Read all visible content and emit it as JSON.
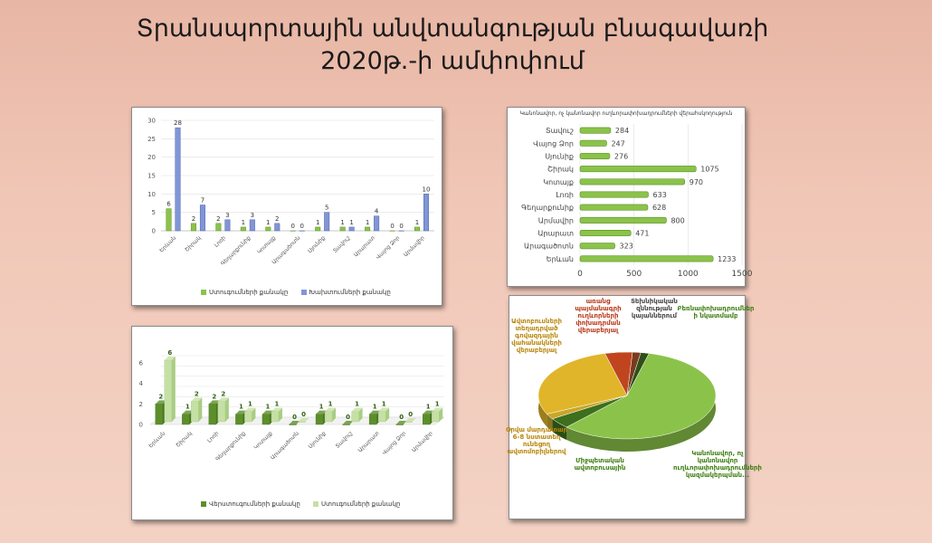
{
  "title": {
    "line1": "Տրանսպորտային անվտանգության բնագավառի",
    "line2": "2020թ.-ի ամփոփում"
  },
  "colors": {
    "green": "#8bc34a",
    "green_dark": "#5c8f2b",
    "blue": "#8096d6",
    "blue_dark": "#4d63ad",
    "light_green": "#c5e0a5",
    "orange": "#e0b52a",
    "red": "#c0451f"
  },
  "chart_data": [
    {
      "type": "bar",
      "categories": [
        "Երևան",
        "Շիրակ",
        "Լոռի",
        "Գեղարքունիք",
        "Կոտայք",
        "Արագածոտն",
        "Սյունիք",
        "Տավուշ",
        "Արարատ",
        "Վայոց Ձոր",
        "Արմավիր"
      ],
      "series": [
        {
          "name": "Ստուգումների քանակը",
          "values": [
            6,
            2,
            2,
            1,
            1,
            0,
            1,
            1,
            1,
            0,
            1
          ]
        },
        {
          "name": "Խախտումների քանակը",
          "values": [
            28,
            7,
            3,
            3,
            2,
            0,
            5,
            1,
            4,
            0,
            10
          ]
        }
      ],
      "ylim": [
        0,
        30
      ],
      "yticks": [
        0,
        5,
        10,
        15,
        20,
        25,
        30
      ],
      "grid": true,
      "legend": "bottom"
    },
    {
      "type": "bar",
      "orientation": "horizontal",
      "title": "Կանոնավոր, ոչ կանոնավոր ուղևորափոխադրումների վերահսկողություն",
      "categories": [
        "Տավուշ",
        "Վայոց Ձոր",
        "Սյունիք",
        "Շիրակ",
        "Կոտայք",
        "Լոռի",
        "Գեղարքունիք",
        "Արմավիր",
        "Արարատ",
        "Արագածոտն",
        "Երևան"
      ],
      "values": [
        284,
        247,
        276,
        1075,
        970,
        633,
        628,
        800,
        471,
        323,
        1233
      ],
      "xlim": [
        0,
        1500
      ],
      "xticks": [
        0,
        500,
        1000,
        1500
      ],
      "grid": true
    },
    {
      "type": "bar",
      "categories": [
        "Երևան",
        "Շիրակ",
        "Լոռի",
        "Գեղարքունիք",
        "Կոտայք",
        "Արագածոտն",
        "Սյունիք",
        "Տավուշ",
        "Արարատ",
        "Վայոց Ձոր",
        "Արմավիր"
      ],
      "series": [
        {
          "name": "Վերստուգումների քանակը",
          "values": [
            2,
            1,
            2,
            1,
            1,
            0,
            1,
            0,
            1,
            0,
            1
          ]
        },
        {
          "name": "Ստուգումների քանակը",
          "values": [
            6,
            2,
            2,
            1,
            1,
            0,
            1,
            1,
            1,
            0,
            1
          ]
        }
      ],
      "ylim": [
        0,
        6
      ],
      "yticks": [
        0,
        1,
        2,
        3,
        4,
        5,
        6
      ],
      "grid": true,
      "legend": "bottom"
    },
    {
      "type": "pie",
      "slices": [
        {
          "label": "Կանոնավոր, ոչ կանոնավոր ուղևորափոխադրումների կազմակերպման...",
          "value": 58
        },
        {
          "label": "Միջպետական ավտոբուսային",
          "value": 4
        },
        {
          "label": "Օրվա մարդատար 6-8 նստատեղ ունեցող ավտոմոբիլներով",
          "value": 2
        },
        {
          "label": "Ավտոբուսների տեղադրված գովազդային վահանակների վերաբերյալ",
          "value": 28
        },
        {
          "label": "առանց պայմանագրի ուղևորների փոխադրման վերաբերյալ",
          "value": 5
        },
        {
          "label": "Տեխնիկական զննության կայաններում",
          "value": 1.5
        },
        {
          "label": "Բեռնափոխադրումներ ի նկատմամբ",
          "value": 1.5
        }
      ]
    }
  ]
}
